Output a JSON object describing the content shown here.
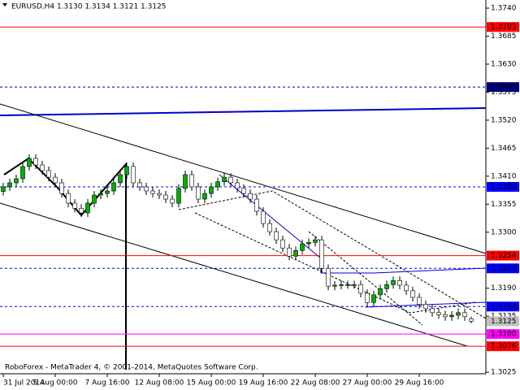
{
  "chart_data": {
    "type": "candlestick",
    "title": "EURUSD,H4  1.3130 1.3134 1.3121 1.3125",
    "footer": "RoboForex - MetaTrader 4, © 2001-2014, MetaQuotes Software Corp.",
    "up_color": "#00b000",
    "down_color": "#ffffff",
    "categories": [
      "31 Jul 2014",
      null,
      null,
      null,
      null,
      null,
      null,
      null,
      "5 Aug 00:00",
      null,
      null,
      null,
      null,
      null,
      null,
      null,
      "7 Aug 16:00",
      null,
      null,
      null,
      null,
      null,
      null,
      null,
      "12 Aug 08:00",
      null,
      null,
      null,
      null,
      null,
      null,
      null,
      "15 Aug 00:00",
      null,
      null,
      null,
      null,
      null,
      null,
      null,
      "19 Aug 16:00",
      null,
      null,
      null,
      null,
      null,
      null,
      null,
      "22 Aug 08:00",
      null,
      null,
      null,
      null,
      null,
      null,
      null,
      "27 Aug 00:00",
      null,
      null,
      null,
      null,
      null,
      null,
      null,
      "29 Aug 16:00",
      null,
      null,
      null,
      null,
      null,
      null,
      null,
      null
    ],
    "open": [
      1.338,
      1.3389,
      1.3397,
      1.3405,
      1.3429,
      1.3445,
      1.3432,
      1.3421,
      1.3408,
      1.3397,
      1.3376,
      1.3357,
      1.3347,
      1.3338,
      1.3357,
      1.3373,
      1.3376,
      1.3381,
      1.3397,
      1.3413,
      1.3429,
      1.3397,
      1.3389,
      1.3381,
      1.3376,
      1.3373,
      1.3365,
      1.3357,
      1.3386,
      1.3413,
      1.3389,
      1.3365,
      1.3376,
      1.3389,
      1.3399,
      1.3408,
      1.3397,
      1.3386,
      1.3376,
      1.3365,
      1.3341,
      1.3317,
      1.3301,
      1.3285,
      1.3269,
      1.3253,
      1.3264,
      1.3277,
      1.328,
      1.3285,
      1.3229,
      1.3194,
      1.3196,
      1.3197,
      1.3197,
      1.3197,
      1.318,
      1.3162,
      1.3177,
      1.3189,
      1.3197,
      1.3205,
      1.3196,
      1.3185,
      1.3172,
      1.3158,
      1.315,
      1.3142,
      1.3138,
      1.3134,
      1.3137,
      1.3142,
      1.313
    ],
    "high": [
      1.3397,
      1.3405,
      1.3413,
      1.3437,
      1.3453,
      1.3453,
      1.344,
      1.3429,
      1.3416,
      1.3405,
      1.3384,
      1.3365,
      1.3355,
      1.3365,
      1.3381,
      1.3384,
      1.3389,
      1.3405,
      1.3421,
      1.3437,
      1.3437,
      1.3405,
      1.3397,
      1.3389,
      1.3384,
      1.3381,
      1.3373,
      1.3394,
      1.3421,
      1.3421,
      1.3397,
      1.3384,
      1.3397,
      1.3407,
      1.3416,
      1.3416,
      1.3405,
      1.3394,
      1.3384,
      1.3373,
      1.3349,
      1.3325,
      1.3309,
      1.3293,
      1.3277,
      1.3272,
      1.3285,
      1.3288,
      1.3293,
      1.3293,
      1.3237,
      1.3204,
      1.3205,
      1.3205,
      1.3205,
      1.3205,
      1.3188,
      1.3185,
      1.3197,
      1.3205,
      1.3213,
      1.3213,
      1.3204,
      1.3193,
      1.318,
      1.3166,
      1.3158,
      1.315,
      1.3146,
      1.3145,
      1.315,
      1.315,
      1.3134
    ],
    "low": [
      1.3372,
      1.3381,
      1.3389,
      1.3397,
      1.3421,
      1.3424,
      1.3413,
      1.34,
      1.3389,
      1.3368,
      1.3349,
      1.3339,
      1.333,
      1.333,
      1.3349,
      1.3365,
      1.3368,
      1.3373,
      1.3389,
      1.3405,
      1.3389,
      1.3381,
      1.3373,
      1.3368,
      1.3365,
      1.3357,
      1.3349,
      1.3349,
      1.3378,
      1.3381,
      1.3357,
      1.3357,
      1.3368,
      1.3381,
      1.3391,
      1.3389,
      1.3378,
      1.3368,
      1.3357,
      1.3333,
      1.3309,
      1.3293,
      1.3277,
      1.3261,
      1.3245,
      1.3245,
      1.3256,
      1.3269,
      1.3272,
      1.3221,
      1.3186,
      1.3186,
      1.3188,
      1.3189,
      1.3189,
      1.3172,
      1.3154,
      1.3154,
      1.3169,
      1.3181,
      1.3189,
      1.3188,
      1.3177,
      1.3164,
      1.315,
      1.3142,
      1.3134,
      1.313,
      1.3126,
      1.3126,
      1.3129,
      1.3126,
      1.3121
    ],
    "close": [
      1.3389,
      1.3397,
      1.3405,
      1.3429,
      1.3445,
      1.3432,
      1.3421,
      1.3408,
      1.3397,
      1.3376,
      1.3357,
      1.3347,
      1.3338,
      1.3357,
      1.3373,
      1.3376,
      1.3381,
      1.3397,
      1.3413,
      1.3429,
      1.3397,
      1.3389,
      1.3381,
      1.3376,
      1.3373,
      1.3365,
      1.3357,
      1.3386,
      1.3413,
      1.3389,
      1.3365,
      1.3376,
      1.3389,
      1.3399,
      1.3408,
      1.3397,
      1.3386,
      1.3376,
      1.3365,
      1.3341,
      1.3317,
      1.3301,
      1.3285,
      1.3269,
      1.3253,
      1.3264,
      1.3277,
      1.328,
      1.3285,
      1.3229,
      1.3194,
      1.3196,
      1.3197,
      1.3197,
      1.3197,
      1.318,
      1.3162,
      1.3177,
      1.3189,
      1.3197,
      1.3205,
      1.3196,
      1.3185,
      1.3172,
      1.3158,
      1.315,
      1.3142,
      1.3138,
      1.3134,
      1.3137,
      1.3142,
      1.3134,
      1.3125
    ],
    "ylim": [
      1.3022,
      1.3756
    ],
    "yticks": [
      {
        "value": 1.374,
        "label": "1.3740"
      },
      1.3685,
      {
        "value": 1.363,
        "label": "1.3630"
      },
      1.3575,
      {
        "value": 1.352,
        "label": "1.3520"
      },
      1.3465,
      {
        "value": 1.341,
        "label": "1.3410"
      },
      1.3355,
      {
        "value": 1.33,
        "label": "1.3300"
      },
      {
        "value": 1.319,
        "label": "1.3190"
      },
      1.3135,
      1.3025
    ],
    "levels": [
      {
        "value": 1.3703,
        "color": "#ff0000",
        "style": "solid"
      },
      {
        "value": 1.3585,
        "color": "#000080",
        "style": "dashed"
      },
      {
        "value": 1.3389,
        "color": "#0000ff",
        "style": "dashed"
      },
      {
        "value": 1.3254,
        "color": "#ff0000",
        "style": "solid"
      },
      {
        "value": 1.3229,
        "color": "#0000ff",
        "style": "dashed"
      },
      {
        "value": 1.3154,
        "color": "#0000ff",
        "style": "dashed"
      },
      {
        "value": 1.3125,
        "color": "#c0c0c0",
        "style": "current"
      },
      {
        "value": 1.31,
        "label": "1.3100",
        "color": "#ff00ff",
        "style": "solid"
      },
      {
        "value": 1.3076,
        "color": "#ff0000",
        "style": "solid"
      }
    ]
  }
}
